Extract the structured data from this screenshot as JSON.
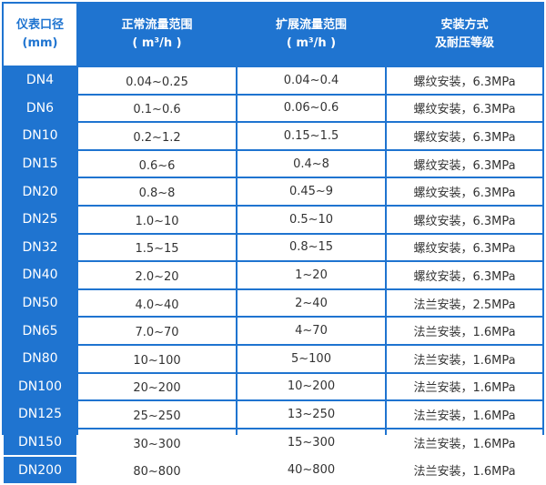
{
  "headers": [
    {
      "line1": "仪表口径",
      "line2": "(mm)"
    },
    {
      "line1": "正常流量范围",
      "line2": "( m³/h )"
    },
    {
      "line1": "扩展流量范围",
      "line2": "( m³/h )"
    },
    {
      "line1": "安装方式",
      "line2": "及耐压等级"
    }
  ],
  "rows": [
    [
      "DN4",
      "0.04~0.25",
      "0.04~0.4",
      "螺纹安装，6.3MPa"
    ],
    [
      "DN6",
      "0.1~0.6",
      "0.06~0.6",
      "螺纹安装，6.3MPa"
    ],
    [
      "DN10",
      "0.2~1.2",
      "0.15~1.5",
      "螺纹安装，6.3MPa"
    ],
    [
      "DN15",
      "0.6~6",
      "0.4~8",
      "螺纹安装，6.3MPa"
    ],
    [
      "DN20",
      "0.8~8",
      "0.45~9",
      "螺纹安装，6.3MPa"
    ],
    [
      "DN25",
      "1.0~10",
      "0.5~10",
      "螺纹安装，6.3MPa"
    ],
    [
      "DN32",
      "1.5~15",
      "0.8~15",
      "螺纹安装，6.3MPa"
    ],
    [
      "DN40",
      "2.0~20",
      "1~20",
      "螺纹安装，6.3MPa"
    ],
    [
      "DN50",
      "4.0~40",
      "2~40",
      "法兰安装，2.5MPa"
    ],
    [
      "DN65",
      "7.0~70",
      "4~70",
      "法兰安装，1.6MPa"
    ],
    [
      "DN80",
      "10~100",
      "5~100",
      "法兰安装，1.6MPa"
    ],
    [
      "DN100",
      "20~200",
      "10~200",
      "法兰安装，1.6MPa"
    ],
    [
      "DN125",
      "25~250",
      "13~250",
      "法兰安装，1.6MPa"
    ],
    [
      "DN150",
      "30~300",
      "15~300",
      "法兰安装，1.6MPa"
    ],
    [
      "DN200",
      "80~800",
      "40~800",
      "法兰安装，1.6MPa"
    ]
  ],
  "colors": {
    "accent": "#1f74d0",
    "text": "#333333",
    "background": "#ffffff"
  }
}
